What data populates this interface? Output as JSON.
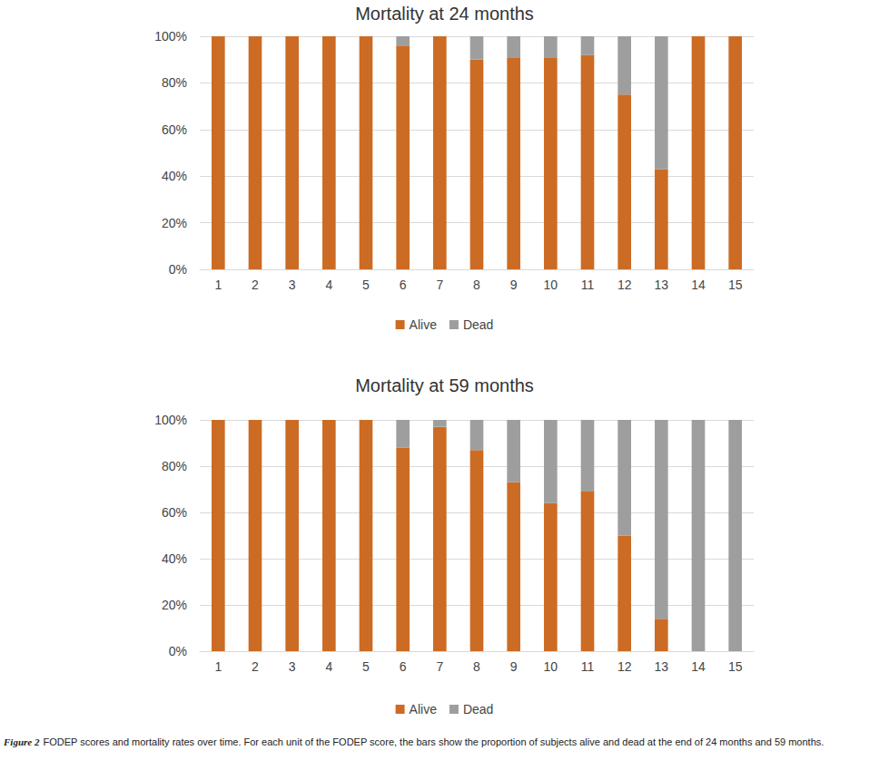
{
  "chart_data": [
    {
      "type": "bar",
      "title": "Mortality at 24 months",
      "categories": [
        "1",
        "2",
        "3",
        "4",
        "5",
        "6",
        "7",
        "8",
        "9",
        "10",
        "11",
        "12",
        "13",
        "14",
        "15"
      ],
      "series": [
        {
          "name": "Alive",
          "color": "#cc6b24",
          "values": [
            100,
            100,
            100,
            100,
            100,
            96,
            100,
            90,
            91,
            91,
            92,
            75,
            43,
            100,
            100
          ]
        },
        {
          "name": "Dead",
          "color": "#9e9e9e",
          "values": [
            0,
            0,
            0,
            0,
            0,
            4,
            0,
            10,
            9,
            9,
            8,
            25,
            57,
            0,
            0
          ]
        }
      ],
      "ylim": [
        0,
        100
      ],
      "yticks": [
        {
          "value": 0,
          "label": "0%"
        },
        {
          "value": 20,
          "label": "20%"
        },
        {
          "value": 40,
          "label": "40%"
        },
        {
          "value": 60,
          "label": "60%"
        },
        {
          "value": 80,
          "label": "80%"
        },
        {
          "value": 100,
          "label": "100%"
        }
      ],
      "grid": true,
      "legend": "bottom",
      "stacked": true
    },
    {
      "type": "bar",
      "title": "Mortality at 59 months",
      "categories": [
        "1",
        "2",
        "3",
        "4",
        "5",
        "6",
        "7",
        "8",
        "9",
        "10",
        "11",
        "12",
        "13",
        "14",
        "15"
      ],
      "series": [
        {
          "name": "Alive",
          "color": "#cc6b24",
          "values": [
            100,
            100,
            100,
            100,
            100,
            88,
            97,
            87,
            73,
            64,
            69,
            50,
            14,
            0,
            0
          ]
        },
        {
          "name": "Dead",
          "color": "#9e9e9e",
          "values": [
            0,
            0,
            0,
            0,
            0,
            12,
            3,
            13,
            27,
            36,
            31,
            50,
            86,
            100,
            100
          ]
        }
      ],
      "ylim": [
        0,
        100
      ],
      "yticks": [
        {
          "value": 0,
          "label": "0%"
        },
        {
          "value": 20,
          "label": "20%"
        },
        {
          "value": 40,
          "label": "40%"
        },
        {
          "value": 60,
          "label": "60%"
        },
        {
          "value": 80,
          "label": "80%"
        },
        {
          "value": 100,
          "label": "100%"
        }
      ],
      "grid": true,
      "legend": "bottom",
      "stacked": true
    }
  ],
  "caption_label": "Figure 2",
  "caption": "FODEP scores and mortality rates over time. For each unit of the FODEP score, the bars show the proportion of subjects alive and dead at the end of 24 months and 59 months."
}
